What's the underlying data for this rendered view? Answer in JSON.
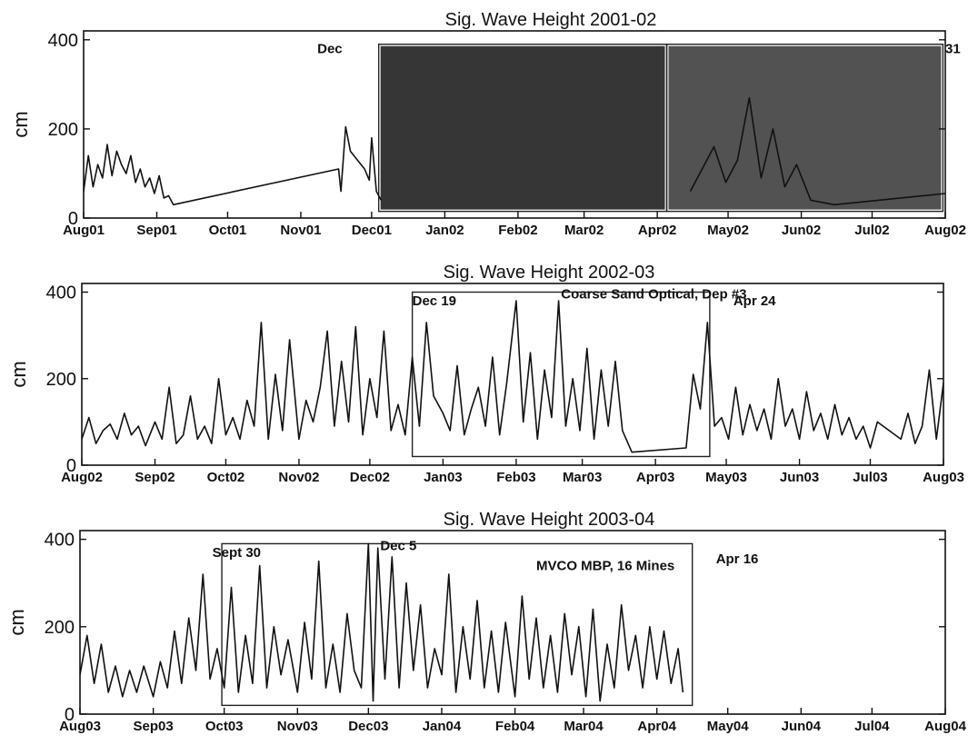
{
  "chart_data": [
    {
      "type": "line",
      "title": "Sig. Wave Height 2001-02",
      "ylabel": "cm",
      "ylim": [
        0,
        420
      ],
      "yticks": [
        0,
        200,
        400
      ],
      "xlim": [
        "2001-08-01",
        "2002-08-01"
      ],
      "xticks": [
        {
          "date": "2001-08-01",
          "label": "Aug01"
        },
        {
          "date": "2001-09-01",
          "label": "Sep01"
        },
        {
          "date": "2001-10-01",
          "label": "Oct01"
        },
        {
          "date": "2001-11-01",
          "label": "Nov01"
        },
        {
          "date": "2001-12-01",
          "label": "Dec01"
        },
        {
          "date": "2002-01-01",
          "label": "Jan02"
        },
        {
          "date": "2002-02-01",
          "label": "Feb02"
        },
        {
          "date": "2002-03-01",
          "label": "Mar02"
        },
        {
          "date": "2002-04-01",
          "label": "Apr02"
        },
        {
          "date": "2002-05-01",
          "label": "May02"
        },
        {
          "date": "2002-06-01",
          "label": "Jun02"
        },
        {
          "date": "2002-07-01",
          "label": "Jul02"
        },
        {
          "date": "2002-08-01",
          "label": "Aug02"
        }
      ],
      "series": [
        {
          "x": [
            "2001-08-01",
            "2001-08-03",
            "2001-08-05",
            "2001-08-07",
            "2001-08-09",
            "2001-08-11",
            "2001-08-13",
            "2001-08-15",
            "2001-08-17",
            "2001-08-19",
            "2001-08-21",
            "2001-08-23",
            "2001-08-25",
            "2001-08-27",
            "2001-08-29",
            "2001-08-31",
            "2001-09-02",
            "2001-09-04",
            "2001-09-06",
            "2001-09-08",
            "2001-11-17",
            "2001-11-18",
            "2001-11-20",
            "2001-11-22",
            "2001-11-25",
            "2001-11-28",
            "2001-11-30",
            "2001-12-01",
            "2001-12-03",
            "2001-12-05"
          ],
          "y": [
            60,
            140,
            70,
            120,
            90,
            165,
            95,
            150,
            120,
            100,
            140,
            80,
            110,
            70,
            90,
            55,
            95,
            45,
            50,
            30,
            110,
            60,
            205,
            150,
            130,
            110,
            85,
            180,
            60,
            40
          ]
        },
        {
          "x": [
            "2002-04-15",
            "2002-04-20",
            "2002-04-25",
            "2002-04-30",
            "2002-05-05",
            "2002-05-10",
            "2002-05-15",
            "2002-05-20",
            "2002-05-25",
            "2002-05-30",
            "2002-06-05",
            "2002-06-15",
            "2002-08-01"
          ],
          "y": [
            60,
            110,
            160,
            80,
            130,
            270,
            90,
            200,
            70,
            120,
            40,
            30,
            55
          ]
        }
      ],
      "boxes": [
        {
          "start": "2001-12-04",
          "end": "2002-04-05",
          "ymin": 15,
          "ymax": 390
        },
        {
          "start": "2002-04-05",
          "end": "2002-07-31",
          "ymin": 15,
          "ymax": 390
        }
      ],
      "annotations": [
        {
          "text": "Dec",
          "date": "2001-11-08",
          "y": 370
        },
        {
          "text": "31",
          "date": "2002-08-01",
          "y": 370
        }
      ]
    },
    {
      "type": "line",
      "title": "Sig. Wave Height 2002-03",
      "ylabel": "cm",
      "ylim": [
        0,
        420
      ],
      "yticks": [
        0,
        200,
        400
      ],
      "xlim": [
        "2002-08-01",
        "2003-08-01"
      ],
      "xticks": [
        {
          "date": "2002-08-01",
          "label": "Aug02"
        },
        {
          "date": "2002-09-01",
          "label": "Sep02"
        },
        {
          "date": "2002-10-01",
          "label": "Oct02"
        },
        {
          "date": "2002-11-01",
          "label": "Nov02"
        },
        {
          "date": "2002-12-01",
          "label": "Dec02"
        },
        {
          "date": "2003-01-01",
          "label": "Jan03"
        },
        {
          "date": "2003-02-01",
          "label": "Feb03"
        },
        {
          "date": "2003-03-01",
          "label": "Mar03"
        },
        {
          "date": "2003-04-01",
          "label": "Apr03"
        },
        {
          "date": "2003-05-01",
          "label": "May03"
        },
        {
          "date": "2003-06-01",
          "label": "Jun03"
        },
        {
          "date": "2003-07-01",
          "label": "Jul03"
        },
        {
          "date": "2003-08-01",
          "label": "Aug03"
        }
      ],
      "series": [
        {
          "x": [
            "2002-08-01",
            "2002-08-04",
            "2002-08-07",
            "2002-08-10",
            "2002-08-13",
            "2002-08-16",
            "2002-08-19",
            "2002-08-22",
            "2002-08-25",
            "2002-08-28",
            "2002-09-01",
            "2002-09-04",
            "2002-09-07",
            "2002-09-10",
            "2002-09-13",
            "2002-09-16",
            "2002-09-19",
            "2002-09-22",
            "2002-09-25",
            "2002-09-28",
            "2002-10-01",
            "2002-10-04",
            "2002-10-07",
            "2002-10-10",
            "2002-10-13",
            "2002-10-16",
            "2002-10-19",
            "2002-10-22",
            "2002-10-25",
            "2002-10-28",
            "2002-11-01",
            "2002-11-04",
            "2002-11-07",
            "2002-11-10",
            "2002-11-13",
            "2002-11-16",
            "2002-11-19",
            "2002-11-22",
            "2002-11-25",
            "2002-11-28",
            "2002-12-01",
            "2002-12-04",
            "2002-12-07",
            "2002-12-10",
            "2002-12-13",
            "2002-12-16",
            "2002-12-19",
            "2002-12-22",
            "2002-12-25",
            "2002-12-28",
            "2003-01-01",
            "2003-01-04",
            "2003-01-07",
            "2003-01-10",
            "2003-01-13",
            "2003-01-16",
            "2003-01-19",
            "2003-01-22",
            "2003-01-25",
            "2003-01-28",
            "2003-02-01",
            "2003-02-04",
            "2003-02-07",
            "2003-02-10",
            "2003-02-13",
            "2003-02-16",
            "2003-02-19",
            "2003-02-22",
            "2003-02-25",
            "2003-02-28",
            "2003-03-03",
            "2003-03-06",
            "2003-03-09",
            "2003-03-12",
            "2003-03-15",
            "2003-03-18",
            "2003-03-22",
            "2003-04-14",
            "2003-04-17",
            "2003-04-20",
            "2003-04-23",
            "2003-04-26",
            "2003-04-29",
            "2003-05-02",
            "2003-05-05",
            "2003-05-08",
            "2003-05-11",
            "2003-05-14",
            "2003-05-17",
            "2003-05-20",
            "2003-05-23",
            "2003-05-26",
            "2003-05-29",
            "2003-06-01",
            "2003-06-04",
            "2003-06-07",
            "2003-06-10",
            "2003-06-13",
            "2003-06-16",
            "2003-06-19",
            "2003-06-22",
            "2003-06-25",
            "2003-06-28",
            "2003-07-01",
            "2003-07-04",
            "2003-07-14",
            "2003-07-17",
            "2003-07-20",
            "2003-07-23",
            "2003-07-26",
            "2003-07-29",
            "2003-08-01"
          ],
          "y": [
            60,
            110,
            50,
            80,
            95,
            60,
            120,
            70,
            90,
            45,
            100,
            60,
            180,
            50,
            70,
            160,
            60,
            90,
            50,
            200,
            70,
            110,
            60,
            150,
            90,
            330,
            60,
            210,
            80,
            290,
            60,
            150,
            100,
            180,
            310,
            90,
            240,
            100,
            320,
            70,
            200,
            110,
            310,
            80,
            140,
            70,
            250,
            90,
            330,
            160,
            120,
            80,
            230,
            70,
            130,
            180,
            90,
            250,
            70,
            190,
            380,
            100,
            260,
            60,
            220,
            110,
            380,
            90,
            200,
            80,
            270,
            60,
            220,
            90,
            240,
            80,
            30,
            40,
            210,
            130,
            330,
            90,
            110,
            60,
            180,
            70,
            140,
            80,
            130,
            60,
            200,
            90,
            130,
            60,
            170,
            80,
            120,
            60,
            140,
            70,
            110,
            60,
            90,
            40,
            100,
            60,
            120,
            50,
            90,
            220,
            60,
            190
          ]
        }
      ],
      "boxes": [
        {
          "start": "2002-12-19",
          "end": "2003-04-24",
          "ymin": 20,
          "ymax": 400
        }
      ],
      "annotations": [
        {
          "text": "Dec 19",
          "date": "2002-12-19",
          "y": 370
        },
        {
          "text": "Coarse Sand Optical, Dep #3",
          "date": "2003-02-20",
          "y": 385
        },
        {
          "text": "Apr 24",
          "date": "2003-05-04",
          "y": 370
        }
      ]
    },
    {
      "type": "line",
      "title": "Sig. Wave Height 2003-04",
      "ylabel": "cm",
      "ylim": [
        0,
        420
      ],
      "yticks": [
        0,
        200,
        400
      ],
      "xlim": [
        "2003-08-01",
        "2004-08-01"
      ],
      "xticks": [
        {
          "date": "2003-08-01",
          "label": "Aug03"
        },
        {
          "date": "2003-09-01",
          "label": "Sep03"
        },
        {
          "date": "2003-10-01",
          "label": "Oct03"
        },
        {
          "date": "2003-11-01",
          "label": "Nov03"
        },
        {
          "date": "2003-12-01",
          "label": "Dec03"
        },
        {
          "date": "2004-01-01",
          "label": "Jan04"
        },
        {
          "date": "2004-02-01",
          "label": "Feb04"
        },
        {
          "date": "2004-03-01",
          "label": "Mar04"
        },
        {
          "date": "2004-04-01",
          "label": "Apr04"
        },
        {
          "date": "2004-05-01",
          "label": "May04"
        },
        {
          "date": "2004-06-01",
          "label": "Jun04"
        },
        {
          "date": "2004-07-01",
          "label": "Jul04"
        },
        {
          "date": "2004-08-01",
          "label": "Aug04"
        }
      ],
      "series": [
        {
          "x": [
            "2003-08-01",
            "2003-08-04",
            "2003-08-07",
            "2003-08-10",
            "2003-08-13",
            "2003-08-16",
            "2003-08-19",
            "2003-08-22",
            "2003-08-25",
            "2003-08-28",
            "2003-09-01",
            "2003-09-04",
            "2003-09-07",
            "2003-09-10",
            "2003-09-13",
            "2003-09-16",
            "2003-09-19",
            "2003-09-22",
            "2003-09-25",
            "2003-09-28",
            "2003-10-01",
            "2003-10-04",
            "2003-10-07",
            "2003-10-10",
            "2003-10-13",
            "2003-10-16",
            "2003-10-19",
            "2003-10-22",
            "2003-10-25",
            "2003-10-28",
            "2003-11-01",
            "2003-11-04",
            "2003-11-07",
            "2003-11-10",
            "2003-11-13",
            "2003-11-16",
            "2003-11-19",
            "2003-11-22",
            "2003-11-25",
            "2003-11-28",
            "2003-12-01",
            "2003-12-03",
            "2003-12-05",
            "2003-12-08",
            "2003-12-11",
            "2003-12-14",
            "2003-12-17",
            "2003-12-20",
            "2003-12-23",
            "2003-12-26",
            "2003-12-29",
            "2004-01-01",
            "2004-01-04",
            "2004-01-07",
            "2004-01-10",
            "2004-01-13",
            "2004-01-16",
            "2004-01-19",
            "2004-01-22",
            "2004-01-25",
            "2004-01-28",
            "2004-02-01",
            "2004-02-04",
            "2004-02-07",
            "2004-02-10",
            "2004-02-13",
            "2004-02-16",
            "2004-02-19",
            "2004-02-22",
            "2004-02-25",
            "2004-02-28",
            "2004-03-02",
            "2004-03-05",
            "2004-03-08",
            "2004-03-11",
            "2004-03-14",
            "2004-03-17",
            "2004-03-20",
            "2004-03-23",
            "2004-03-26",
            "2004-03-29",
            "2004-04-01",
            "2004-04-04",
            "2004-04-07",
            "2004-04-10",
            "2004-04-12"
          ],
          "y": [
            90,
            180,
            70,
            160,
            50,
            110,
            40,
            100,
            50,
            110,
            40,
            120,
            60,
            190,
            70,
            220,
            100,
            320,
            80,
            150,
            60,
            290,
            50,
            180,
            70,
            340,
            60,
            200,
            90,
            170,
            50,
            210,
            80,
            350,
            60,
            160,
            50,
            230,
            100,
            60,
            390,
            30,
            380,
            80,
            360,
            60,
            300,
            100,
            250,
            60,
            150,
            90,
            320,
            50,
            200,
            80,
            260,
            60,
            190,
            50,
            210,
            40,
            270,
            80,
            220,
            60,
            180,
            50,
            230,
            90,
            200,
            40,
            240,
            30,
            160,
            60,
            250,
            100,
            180,
            60,
            200,
            80,
            190,
            70,
            150,
            50
          ]
        }
      ],
      "boxes": [
        {
          "start": "2003-09-30",
          "end": "2004-04-16",
          "ymin": 20,
          "ymax": 390
        }
      ],
      "annotations": [
        {
          "text": "Sept 30",
          "date": "2003-09-26",
          "y": 360
        },
        {
          "text": "Dec 5",
          "date": "2003-12-06",
          "y": 375
        },
        {
          "text": "MVCO MBP, 16 Mines",
          "date": "2004-02-10",
          "y": 330
        },
        {
          "text": "Apr 16",
          "date": "2004-04-26",
          "y": 345
        }
      ]
    }
  ]
}
